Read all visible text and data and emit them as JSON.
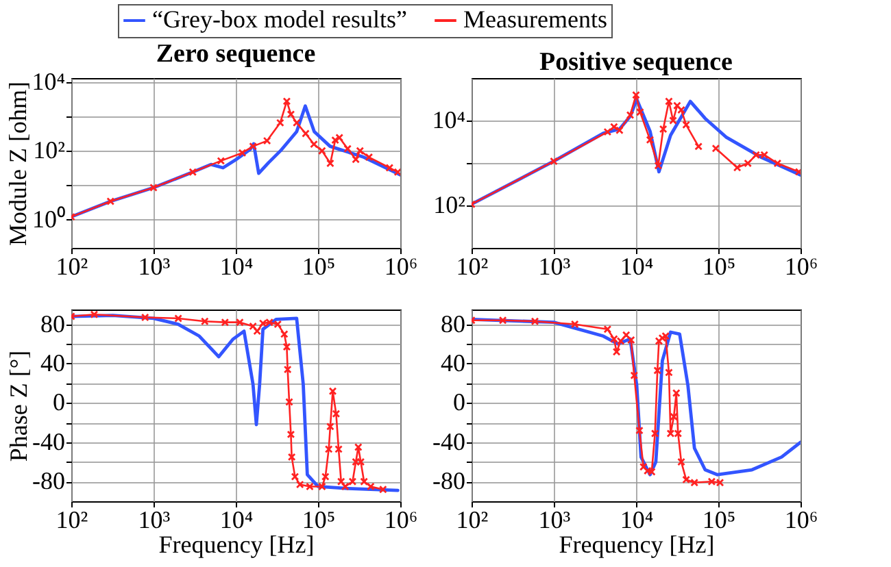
{
  "chart_data": [
    {
      "type": "line",
      "title": "Zero sequence",
      "ylabel": "Module Z [ohm]",
      "log": "xy",
      "grid": true,
      "legend": "top",
      "xlim": [
        100,
        1000000
      ],
      "xticks": [
        {
          "value": 100,
          "label": "10²"
        },
        {
          "value": 1000,
          "label": "10³"
        },
        {
          "value": 10000,
          "label": "10⁴"
        },
        {
          "value": 100000,
          "label": "10⁵"
        },
        {
          "value": 1000000,
          "label": "10⁶"
        }
      ],
      "ylim": [
        0.15,
        13000
      ],
      "yticks": [
        {
          "value": 1,
          "label": "10⁰"
        },
        {
          "value": 10,
          "label": null
        },
        {
          "value": 100,
          "label": "10²"
        },
        {
          "value": 1000,
          "label": null
        },
        {
          "value": 10000,
          "label": "10⁴"
        }
      ],
      "series": [
        {
          "name": "“Grey-box model results”",
          "color": "#3355ff",
          "marker": "none",
          "x": [
            100,
            300,
            1000,
            3000,
            5000,
            7000,
            10000,
            15000,
            16500,
            19000,
            25000,
            35000,
            55000,
            70000,
            90000,
            140000,
            360000,
            1000000
          ],
          "values": [
            1.2,
            3.4,
            8.5,
            24,
            40,
            32,
            55,
            110,
            160,
            22,
            45,
            100,
            360,
            2000,
            360,
            135,
            65,
            20
          ]
        },
        {
          "name": "Measurements",
          "color": "#ff2222",
          "marker": "cross",
          "x": [
            100,
            300,
            1000,
            3000,
            6600,
            12000,
            16200,
            24000,
            34700,
            41700,
            46800,
            55000,
            70800,
            89100,
            112000,
            141000,
            162000,
            182000,
            229000,
            288000,
            324000,
            417000,
            741000,
            933000
          ],
          "values": [
            1.2,
            3.4,
            8.5,
            24,
            51,
            87,
            135,
            195,
            650,
            2750,
            1150,
            650,
            316,
            155,
            100,
            43,
            204,
            240,
            115,
            56,
            100,
            65,
            32,
            24
          ]
        }
      ]
    },
    {
      "type": "line",
      "title": "Positive sequence",
      "log": "xy",
      "grid": true,
      "xlim": [
        100,
        1000000
      ],
      "xticks": [
        {
          "value": 100,
          "label": "10²"
        },
        {
          "value": 1000,
          "label": "10³"
        },
        {
          "value": 10000,
          "label": "10⁴"
        },
        {
          "value": 100000,
          "label": "10⁵"
        },
        {
          "value": 1000000,
          "label": "10⁶"
        }
      ],
      "ylim": [
        10,
        100000
      ],
      "yticks": [
        {
          "value": 100,
          "label": "10²"
        },
        {
          "value": 1000,
          "label": null
        },
        {
          "value": 10000,
          "label": "10⁴"
        }
      ],
      "series": [
        {
          "color": "#3355ff",
          "marker": "none",
          "x": [
            100,
            1000,
            4000,
            6300,
            8500,
            10200,
            14800,
            19000,
            26300,
            45700,
            69200,
            126000,
            324000,
            1000000
          ],
          "values": [
            107,
            1100,
            5000,
            6300,
            12600,
            31600,
            5600,
            620,
            4500,
            28200,
            11200,
            4000,
            1400,
            520
          ]
        },
        {
          "color": "#ff2222",
          "marker": "cross",
          "x": [
            100,
            1000,
            4500,
            5400,
            6300,
            8500,
            10000,
            11200,
            14800,
            18600,
            21400,
            25100,
            28200,
            31600,
            35500,
            40700,
            57500,
            75000,
            93300,
            170000,
            229000,
            288000,
            363000,
            525000,
            955000
          ],
          "values": [
            107,
            1100,
            5400,
            7100,
            5900,
            13500,
            39800,
            15800,
            3500,
            870,
            6300,
            28200,
            10000,
            22400,
            17800,
            7900,
            2450,
            null,
            2200,
            780,
            980,
            1550,
            1550,
            980,
            620
          ]
        }
      ]
    },
    {
      "type": "line",
      "xlabel": "Frequency [Hz]",
      "ylabel": "Phase Z  [°]",
      "log": "x",
      "grid": true,
      "xlim": [
        100,
        1000000
      ],
      "xticks": [
        {
          "value": 100,
          "label": "10²"
        },
        {
          "value": 1000,
          "label": "10³"
        },
        {
          "value": 10000,
          "label": "10⁴"
        },
        {
          "value": 100000,
          "label": "10⁵"
        },
        {
          "value": 1000000,
          "label": "10⁶"
        }
      ],
      "ylim": [
        -100,
        95
      ],
      "yticks": [
        80,
        {
          "value": 60,
          "label": null
        },
        40,
        {
          "value": 20,
          "label": null
        },
        0,
        {
          "value": -20,
          "label": null
        },
        -40,
        {
          "value": -60,
          "label": null
        },
        -80
      ],
      "series": [
        {
          "color": "#3355ff",
          "marker": "none",
          "x": [
            100,
            320,
            1000,
            2000,
            3600,
            6200,
            9300,
            12600,
            16200,
            17800,
            19500,
            21400,
            30900,
            55000,
            66100,
            74100,
            100000,
            229000,
            933000
          ],
          "values": [
            88,
            89,
            86,
            80,
            68,
            47,
            65,
            73,
            19,
            -22,
            19,
            75,
            85,
            86,
            19,
            -73,
            -85,
            -87,
            -89
          ]
        },
        {
          "color": "#ff2222",
          "marker": "cross",
          "x": [
            100,
            190,
            790,
            2000,
            4200,
            7400,
            11200,
            16200,
            18200,
            21400,
            25700,
            32400,
            38900,
            41700,
            42700,
            44700,
            46800,
            47900,
            52500,
            60300,
            79400,
            112000,
            123000,
            135000,
            141000,
            151000,
            166000,
            178000,
            191000,
            214000,
            263000,
            288000,
            309000,
            331000,
            363000,
            437000,
            617000
          ],
          "values": [
            88,
            90,
            87,
            86,
            83,
            82,
            82,
            78,
            73,
            81,
            82,
            80,
            70,
            57,
            34,
            1,
            -32,
            -55,
            -75,
            -83,
            -85,
            -85,
            -75,
            -47,
            -24,
            12,
            -11,
            -47,
            -80,
            -85,
            -80,
            -60,
            -45,
            -60,
            -80,
            -85,
            -88
          ]
        }
      ]
    },
    {
      "type": "line",
      "xlabel": "Frequency [Hz]",
      "log": "x",
      "grid": true,
      "xlim": [
        100,
        1000000
      ],
      "xticks": [
        {
          "value": 100,
          "label": "10²"
        },
        {
          "value": 1000,
          "label": "10³"
        },
        {
          "value": 10000,
          "label": "10⁴"
        },
        {
          "value": 100000,
          "label": "10⁵"
        },
        {
          "value": 1000000,
          "label": "10⁶"
        }
      ],
      "ylim": [
        -100,
        95
      ],
      "yticks": [
        80,
        {
          "value": 60,
          "label": null
        },
        40,
        {
          "value": 20,
          "label": null
        },
        0,
        {
          "value": -20,
          "label": null
        },
        -40,
        {
          "value": -60,
          "label": null
        },
        -80
      ],
      "series": [
        {
          "color": "#3355ff",
          "marker": "none",
          "x": [
            100,
            1000,
            4000,
            6000,
            8500,
            10200,
            11500,
            14800,
            17400,
            20900,
            26300,
            33900,
            42700,
            51300,
            69200,
            97700,
            257000,
            589000,
            1000000
          ],
          "values": [
            85,
            82,
            68,
            60,
            65,
            18,
            -55,
            -73,
            -60,
            43,
            72,
            70,
            18,
            -46,
            -68,
            -73,
            -68,
            -55,
            -40
          ]
        },
        {
          "color": "#ff2222",
          "marker": "cross",
          "x": [
            100,
            240,
            590,
            1800,
            4500,
            5400,
            5800,
            6500,
            7600,
            8700,
            9500,
            11000,
            12300,
            13800,
            15500,
            17000,
            18200,
            19000,
            20900,
            22900,
            25100,
            26300,
            28800,
            30900,
            32400,
            35500,
            40700,
            51300,
            83200,
            105000
          ],
          "values": [
            84,
            84,
            83,
            80,
            75,
            65,
            52,
            63,
            69,
            64,
            28,
            -28,
            -65,
            -69,
            -70,
            -31,
            33,
            63,
            66,
            68,
            31,
            -31,
            -14,
            10,
            -31,
            -60,
            -78,
            -81,
            -80,
            -81
          ]
        }
      ]
    }
  ]
}
